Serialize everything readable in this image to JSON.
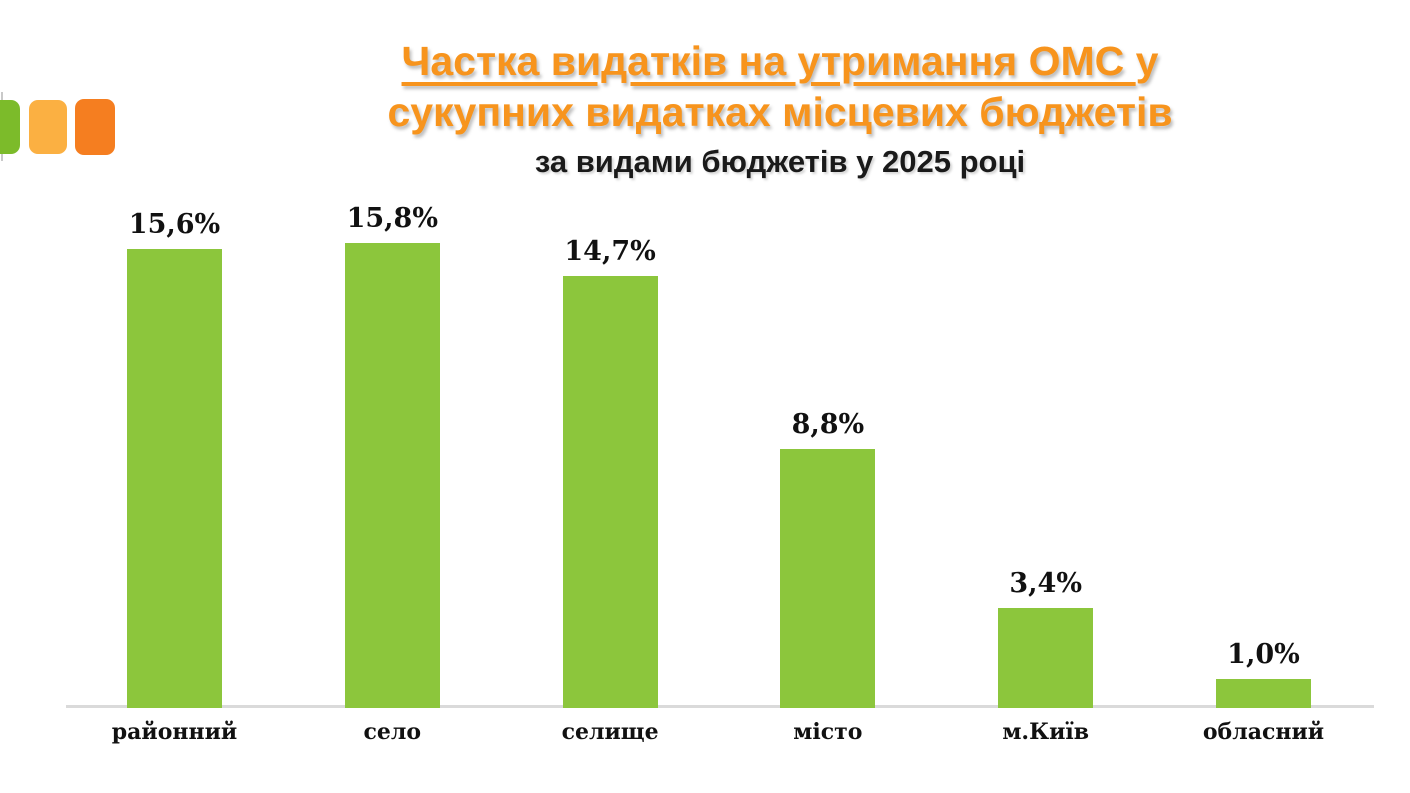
{
  "slide": {
    "title_line1_underlined": "Частка видатків на утримання ОМС ",
    "title_line1_tail": "у",
    "title_line2": "сукупних видатках місцевих бюджетів",
    "subtitle": "за видами бюджетів у 2025 році",
    "title_color": "#F7941D",
    "subtitle_color": "#1A1A1A"
  },
  "logo": {
    "squares": [
      {
        "name": "green-square",
        "color": "#7CBB2A"
      },
      {
        "name": "amber-square",
        "color": "#FBB042"
      },
      {
        "name": "orange-square",
        "color": "#F57E20"
      }
    ],
    "divider_color": "#C9C9C9"
  },
  "chart_data": {
    "type": "bar",
    "title": "Частка видатків на утримання ОМС у сукупних видатках місцевих бюджетів за видами бюджетів у 2025 році",
    "categories": [
      "районний",
      "село",
      "селище",
      "місто",
      "м.Київ",
      "обласний"
    ],
    "values": [
      15.6,
      15.8,
      14.7,
      8.8,
      3.4,
      1.0
    ],
    "data_labels": [
      "15,6%",
      "15,8%",
      "14,7%",
      "8,8%",
      "3,4%",
      "1,0%"
    ],
    "bar_color": "#8CC63C",
    "axis_line_color": "#DADADA",
    "xlabel": "",
    "ylabel": "",
    "ylim": [
      0,
      16.5
    ],
    "grid": false,
    "legend": "none",
    "value_axis_visible": false,
    "data_label_format": "percent, comma decimal separator"
  }
}
